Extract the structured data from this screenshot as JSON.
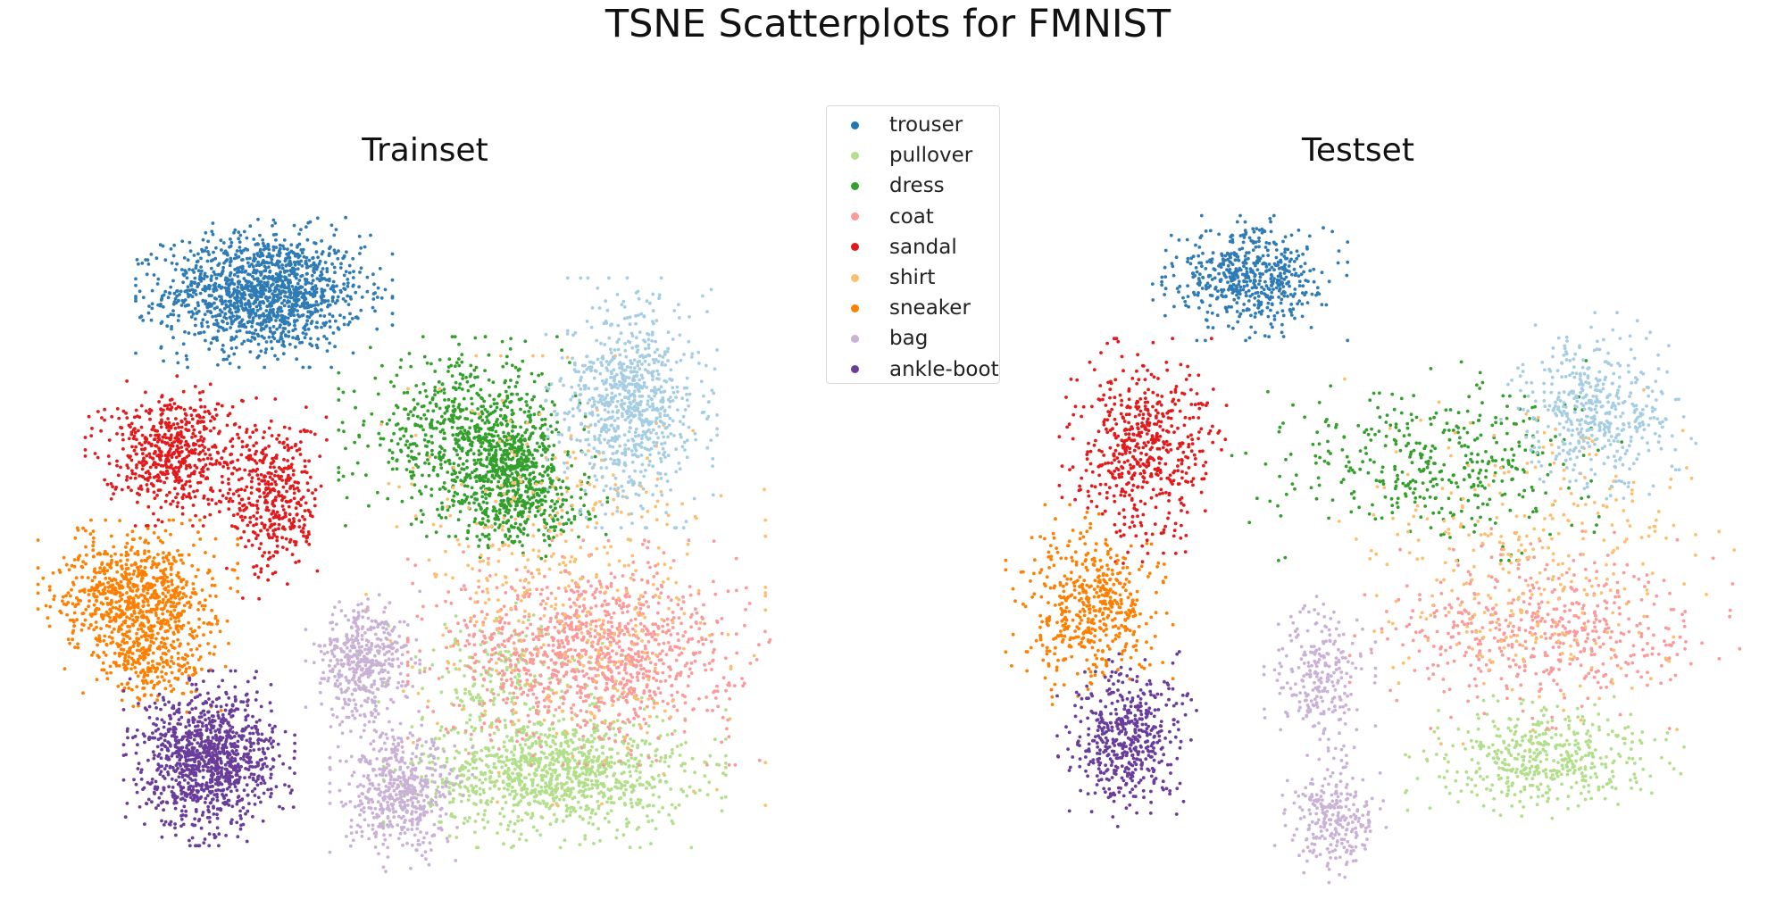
{
  "figure_title": "TSNE Scatterplots for FMNIST",
  "chart_data": [
    {
      "type": "scatter",
      "title": "Trainset",
      "xlabel": "",
      "ylabel": "",
      "axes_visible": false,
      "grid": false,
      "legend_placement": "center-top",
      "series": [
        {
          "name": "trouser",
          "color": "#2f7bb5",
          "clusters": [
            {
              "cx": -35,
              "cy": 55,
              "sx": 9,
              "sy": 6,
              "n": 1400
            }
          ]
        },
        {
          "name": "pullover",
          "color": "#b2df8a",
          "clusters": [
            {
              "cx": 18,
              "cy": -45,
              "sx": 12,
              "sy": 6,
              "n": 1100
            },
            {
              "cx": 8,
              "cy": -25,
              "sx": 10,
              "sy": 6,
              "n": 200
            }
          ]
        },
        {
          "name": "dress",
          "color": "#33a02c",
          "clusters": [
            {
              "cx": 2,
              "cy": 25,
              "sx": 9,
              "sy": 8,
              "n": 700
            },
            {
              "cx": 10,
              "cy": 20,
              "sx": 4,
              "sy": 5,
              "n": 300
            },
            {
              "cx": 12,
              "cy": 10,
              "sx": 6,
              "sy": 4,
              "n": 300
            }
          ]
        },
        {
          "name": "coat",
          "color": "#fb9a99",
          "clusters": [
            {
              "cx": 25,
              "cy": -20,
              "sx": 13,
              "sy": 9,
              "n": 1100
            }
          ]
        },
        {
          "name": "sandal",
          "color": "#e31a1c",
          "clusters": [
            {
              "cx": -52,
              "cy": 22,
              "sx": 6,
              "sy": 6,
              "n": 600
            },
            {
              "cx": -33,
              "cy": 12,
              "sx": 4,
              "sy": 8,
              "n": 400
            }
          ]
        },
        {
          "name": "shirt",
          "color": "#fdbf6f",
          "clusters": [
            {
              "cx": 20,
              "cy": -5,
              "sx": 14,
              "sy": 18,
              "n": 450
            }
          ]
        },
        {
          "name": "sneaker",
          "color": "#ff7f00",
          "clusters": [
            {
              "cx": -58,
              "cy": -8,
              "sx": 7,
              "sy": 6,
              "n": 800
            },
            {
              "cx": -55,
              "cy": -22,
              "sx": 5,
              "sy": 4,
              "n": 250
            }
          ]
        },
        {
          "name": "bag",
          "color": "#cab2d6",
          "clusters": [
            {
              "cx": -17,
              "cy": -22,
              "sx": 4,
              "sy": 6,
              "n": 450
            },
            {
              "cx": -10,
              "cy": -50,
              "sx": 5,
              "sy": 6,
              "n": 500
            }
          ]
        },
        {
          "name": "ankle-boot",
          "color": "#6a3d9a",
          "clusters": [
            {
              "cx": -45,
              "cy": -42,
              "sx": 6,
              "sy": 7,
              "n": 1100
            }
          ]
        },
        {
          "name": "",
          "color": "#a6cee3",
          "clusters": [
            {
              "cx": 32,
              "cy": 32,
              "sx": 6,
              "sy": 10,
              "n": 800
            }
          ]
        }
      ],
      "xlim": [
        -75,
        65
      ],
      "ylim": [
        -70,
        75
      ]
    },
    {
      "type": "scatter",
      "title": "Testset",
      "xlabel": "",
      "ylabel": "",
      "axes_visible": false,
      "grid": false,
      "series": [
        {
          "name": "trouser",
          "color": "#2f7bb5",
          "clusters": [
            {
              "cx": -25,
              "cy": 58,
              "sx": 7,
              "sy": 5,
              "n": 550
            }
          ]
        },
        {
          "name": "pullover",
          "color": "#b2df8a",
          "clusters": [
            {
              "cx": 30,
              "cy": -42,
              "sx": 10,
              "sy": 5,
              "n": 450
            }
          ]
        },
        {
          "name": "dress",
          "color": "#33a02c",
          "clusters": [
            {
              "cx": 8,
              "cy": 20,
              "sx": 14,
              "sy": 8,
              "n": 400
            }
          ]
        },
        {
          "name": "coat",
          "color": "#fb9a99",
          "clusters": [
            {
              "cx": 30,
              "cy": -15,
              "sx": 14,
              "sy": 8,
              "n": 500
            }
          ]
        },
        {
          "name": "sandal",
          "color": "#e31a1c",
          "clusters": [
            {
              "cx": -45,
              "cy": 22,
              "sx": 6,
              "sy": 9,
              "n": 550
            }
          ]
        },
        {
          "name": "shirt",
          "color": "#fdbf6f",
          "clusters": [
            {
              "cx": 28,
              "cy": 0,
              "sx": 16,
              "sy": 15,
              "n": 350
            }
          ]
        },
        {
          "name": "sneaker",
          "color": "#ff7f00",
          "clusters": [
            {
              "cx": -55,
              "cy": -10,
              "sx": 6,
              "sy": 8,
              "n": 500
            }
          ]
        },
        {
          "name": "bag",
          "color": "#cab2d6",
          "clusters": [
            {
              "cx": -12,
              "cy": -25,
              "sx": 4,
              "sy": 7,
              "n": 250
            },
            {
              "cx": -10,
              "cy": -55,
              "sx": 4,
              "sy": 5,
              "n": 250
            }
          ]
        },
        {
          "name": "ankle-boot",
          "color": "#6a3d9a",
          "clusters": [
            {
              "cx": -48,
              "cy": -38,
              "sx": 5,
              "sy": 7,
              "n": 500
            }
          ]
        },
        {
          "name": "",
          "color": "#a6cee3",
          "clusters": [
            {
              "cx": 40,
              "cy": 30,
              "sx": 7,
              "sy": 8,
              "n": 450
            }
          ]
        }
      ],
      "xlim": [
        -75,
        65
      ],
      "ylim": [
        -70,
        75
      ]
    }
  ],
  "legend": {
    "items": [
      {
        "label": "trouser",
        "color": "#1f77b4"
      },
      {
        "label": "pullover",
        "color": "#b2df8a"
      },
      {
        "label": "dress",
        "color": "#33a02c"
      },
      {
        "label": "coat",
        "color": "#fb9a99"
      },
      {
        "label": "sandal",
        "color": "#e31a1c"
      },
      {
        "label": "shirt",
        "color": "#fdbf6f"
      },
      {
        "label": "sneaker",
        "color": "#ff7f00"
      },
      {
        "label": "bag",
        "color": "#cab2d6"
      },
      {
        "label": "ankle-boot",
        "color": "#6a3d9a"
      }
    ]
  }
}
